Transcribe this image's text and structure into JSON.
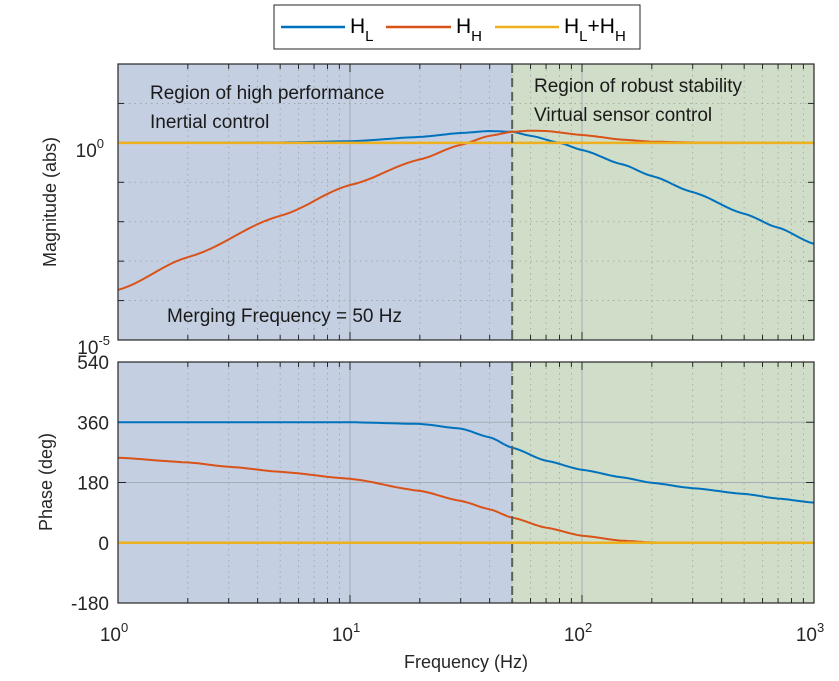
{
  "chart_data": [
    {
      "type": "line",
      "panel": "magnitude",
      "xscale": "log",
      "yscale": "log",
      "xlim": [
        1,
        1000
      ],
      "ylim_exp": [
        -5,
        2
      ],
      "ylabel": "Magnitude (abs)",
      "ytick_labels": [
        {
          "base": "10",
          "exp": "0",
          "value_exp": 0
        },
        {
          "base": "10",
          "exp": "-5",
          "value_exp": -5
        }
      ],
      "grid": true,
      "annotations": [
        {
          "text": "Region of high performance",
          "region": "left"
        },
        {
          "text": "Inertial control",
          "region": "left"
        },
        {
          "text": "Region of robust stability",
          "region": "right"
        },
        {
          "text": "Virtual sensor control",
          "region": "right"
        },
        {
          "text": "Merging Frequency = 50 Hz",
          "region": "left-bottom"
        }
      ],
      "series": [
        {
          "name": "H_L",
          "color": "#0072BD",
          "x": [
            1,
            2,
            5,
            10,
            20,
            30,
            40,
            50,
            60,
            80,
            100,
            150,
            200,
            300,
            500,
            700,
            1000
          ],
          "log10_y": [
            0,
            0,
            0.01,
            0.04,
            0.15,
            0.25,
            0.3,
            0.28,
            0.18,
            0.0,
            -0.18,
            -0.55,
            -0.84,
            -1.25,
            -1.8,
            -2.15,
            -2.56
          ]
        },
        {
          "name": "H_H",
          "color": "#D95319",
          "x": [
            1,
            2,
            5,
            10,
            20,
            30,
            40,
            50,
            60,
            70,
            100,
            150,
            200,
            300,
            500,
            1000
          ],
          "log10_y": [
            -3.73,
            -2.9,
            -1.85,
            -1.07,
            -0.42,
            -0.05,
            0.18,
            0.28,
            0.31,
            0.3,
            0.2,
            0.08,
            0.03,
            0.01,
            0,
            0
          ]
        },
        {
          "name": "H_L+H_H",
          "color": "#EDB120",
          "x": [
            1,
            1000
          ],
          "log10_y": [
            0,
            0
          ]
        }
      ],
      "vline": {
        "x": 50,
        "label": "Merging frequency (Hz)"
      }
    },
    {
      "type": "line",
      "panel": "phase",
      "xscale": "log",
      "xlim": [
        1,
        1000
      ],
      "ylim": [
        -180,
        540
      ],
      "ylabel": "Phase (deg)",
      "xlabel": "Frequency  (Hz)",
      "yticks": [
        -180,
        0,
        180,
        360,
        540
      ],
      "xtick_labels": [
        {
          "base": "10",
          "exp": "0",
          "value_exp": 0
        },
        {
          "base": "10",
          "exp": "1",
          "value_exp": 1
        },
        {
          "base": "10",
          "exp": "2",
          "value_exp": 2
        },
        {
          "base": "10",
          "exp": "3",
          "value_exp": 3
        }
      ],
      "grid": true,
      "series": [
        {
          "name": "H_L",
          "color": "#0072BD",
          "x": [
            1,
            5,
            10,
            20,
            30,
            40,
            50,
            70,
            100,
            150,
            200,
            300,
            500,
            700,
            1000
          ],
          "y": [
            360,
            360,
            360,
            355,
            341,
            315,
            284,
            245,
            218,
            195,
            179,
            163,
            146,
            132,
            120
          ]
        },
        {
          "name": "H_H",
          "color": "#D95319",
          "x": [
            1,
            2,
            3,
            5,
            10,
            20,
            30,
            40,
            50,
            70,
            100,
            150,
            200,
            300,
            1000
          ],
          "y": [
            254,
            240,
            227,
            212,
            191,
            155,
            125,
            100,
            75,
            45,
            21,
            6,
            1,
            0,
            0
          ]
        },
        {
          "name": "H_L+H_H",
          "color": "#EDB120",
          "x": [
            1,
            1000
          ],
          "y": [
            0,
            0
          ]
        }
      ],
      "vline": {
        "x": 50
      }
    }
  ],
  "legend": {
    "placement": "top-center",
    "entries": [
      {
        "main": "H",
        "sub": "L",
        "color": "#0072BD"
      },
      {
        "main": "H",
        "sub": "H",
        "color": "#D95319"
      },
      {
        "main": "H",
        "sub": "L",
        "plus": "+H",
        "sub2": "H",
        "color": "#EDB120"
      }
    ]
  },
  "regions": {
    "left_color": "#c4cfe2",
    "right_color": "#d0ddc8",
    "boundary_hz": 50
  }
}
